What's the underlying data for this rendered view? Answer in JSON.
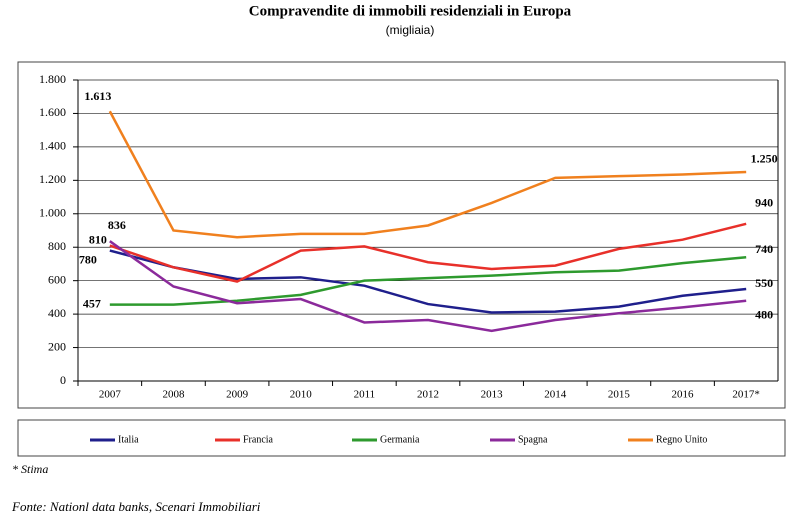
{
  "chart_data": {
    "type": "line",
    "title": "Compravendite di immobili residenziali in Europa",
    "subtitle": "(migliaia)",
    "categories": [
      "2007",
      "2008",
      "2009",
      "2010",
      "2011",
      "2012",
      "2013",
      "2014",
      "2015",
      "2016",
      "2017*"
    ],
    "series": [
      {
        "name": "Italia",
        "color": "#1f1f8c",
        "values": [
          780,
          680,
          610,
          620,
          570,
          460,
          410,
          415,
          445,
          510,
          550
        ],
        "value_labels": [
          "780",
          null,
          null,
          null,
          null,
          null,
          null,
          null,
          null,
          null,
          "550"
        ]
      },
      {
        "name": "Francia",
        "color": "#e8302a",
        "values": [
          810,
          680,
          595,
          780,
          805,
          710,
          670,
          690,
          790,
          845,
          940
        ],
        "value_labels": [
          "810",
          null,
          null,
          null,
          null,
          null,
          null,
          null,
          null,
          null,
          "940"
        ]
      },
      {
        "name": "Germania",
        "color": "#2e9a2e",
        "values": [
          457,
          457,
          480,
          515,
          600,
          615,
          630,
          650,
          660,
          705,
          740
        ],
        "value_labels": [
          "457",
          null,
          null,
          null,
          null,
          null,
          null,
          null,
          null,
          null,
          "740"
        ]
      },
      {
        "name": "Spagna",
        "color": "#8b2a9b",
        "values": [
          836,
          565,
          465,
          490,
          350,
          365,
          300,
          365,
          405,
          440,
          480
        ],
        "value_labels": [
          "836",
          null,
          null,
          null,
          null,
          null,
          null,
          null,
          null,
          null,
          "480"
        ]
      },
      {
        "name": "Regno Unito",
        "color": "#f0801e",
        "values": [
          1613,
          900,
          860,
          880,
          880,
          930,
          1065,
          1215,
          1225,
          1235,
          1250
        ],
        "value_labels": [
          "1.613",
          null,
          null,
          null,
          null,
          null,
          null,
          null,
          null,
          null,
          "1.250"
        ]
      }
    ],
    "ylim": [
      0,
      1800
    ],
    "yticks": [
      0,
      200,
      400,
      600,
      800,
      {
        "value": 1000,
        "label": "1.000"
      },
      {
        "value": 1200,
        "label": "1.200"
      },
      {
        "value": 1400,
        "label": "1.400"
      },
      {
        "value": 1600,
        "label": "1.600"
      },
      {
        "value": 1800,
        "label": "1.800"
      }
    ],
    "grid": true,
    "legend": "bottom",
    "footnote": "* Stima",
    "source": "Fonte: Nationl data banks, Scenari Immobiliari"
  }
}
